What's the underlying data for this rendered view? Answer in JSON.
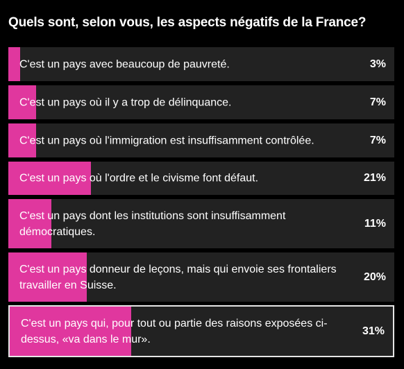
{
  "poll": {
    "title": "Quels sont, selon vous, les aspects négatifs de la France?"
  },
  "colors": {
    "background": "#000000",
    "option_bg": "#222222",
    "bar_fill": "#e0379e",
    "selected_border": "#e6e6e6",
    "text": "#ffffff"
  },
  "chart_data": {
    "type": "bar",
    "orientation": "horizontal",
    "title": "Quels sont, selon vous, les aspects négatifs de la France?",
    "categories": [
      "C'est un pays avec beaucoup de pauvreté.",
      "C'est un pays où il y a trop de délinquance.",
      "C'est un pays où l'immigration est insuffisamment contrôlée.",
      "C'est un pays où l'ordre et le civisme font défaut.",
      "C'est un pays dont les institutions sont insuffisamment démocratiques.",
      "C'est un pays donneur de leçons, mais qui envoie ses frontaliers travailler en Suisse.",
      "C'est un pays qui, pour tout ou partie des raisons exposées ci-dessus, «va dans le mur»."
    ],
    "values": [
      3,
      7,
      7,
      21,
      11,
      20,
      31
    ],
    "value_labels": [
      "3%",
      "7%",
      "7%",
      "21%",
      "11%",
      "20%",
      "31%"
    ],
    "unit": "%",
    "selected_index": 6
  }
}
